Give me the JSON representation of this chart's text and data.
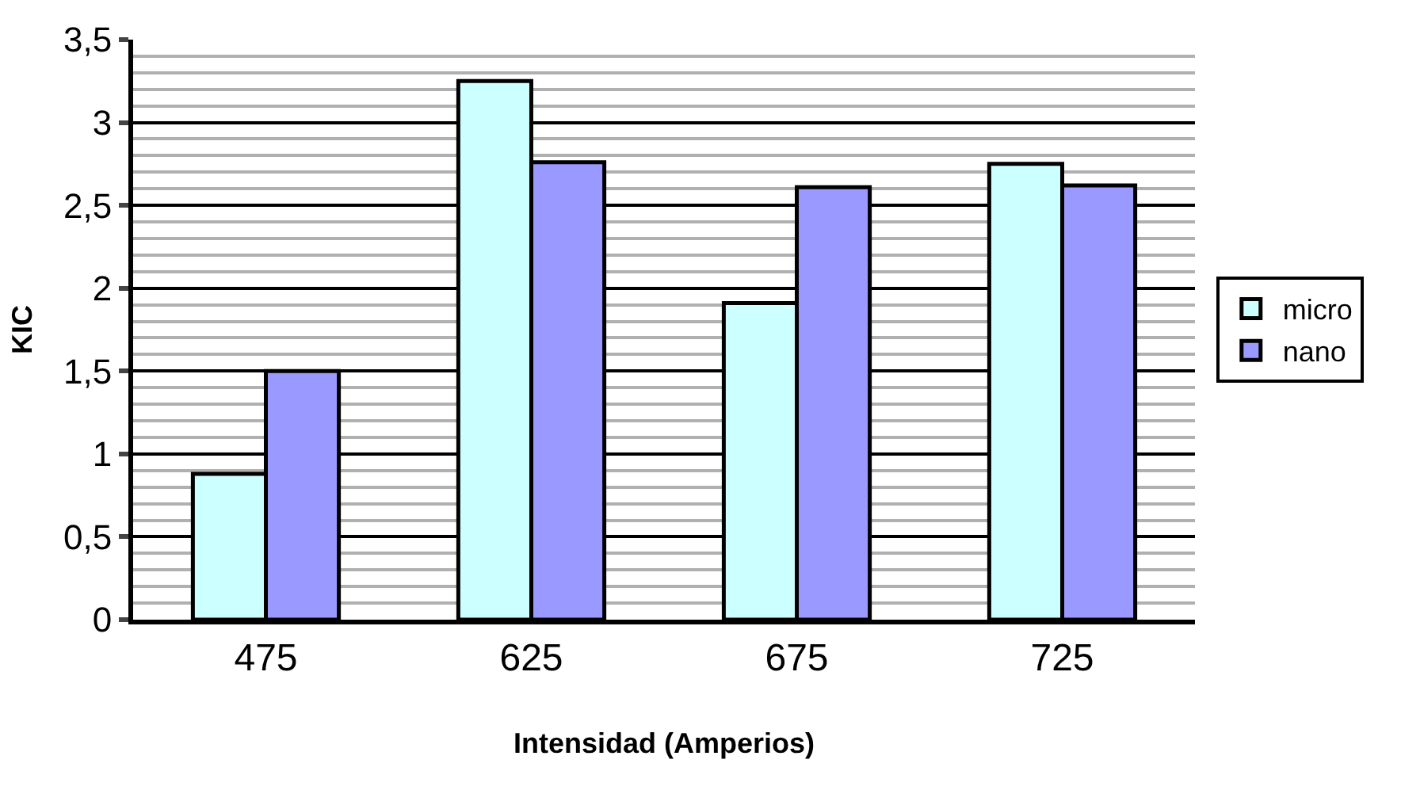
{
  "chart_data": {
    "type": "bar",
    "xlabel": "Intensidad (Amperios)",
    "ylabel": "KIC",
    "categories": [
      "475",
      "625",
      "675",
      "725"
    ],
    "series": [
      {
        "name": "micro",
        "color": "#ccffff",
        "values": [
          0.88,
          3.25,
          1.91,
          2.75
        ]
      },
      {
        "name": "nano",
        "color": "#9999ff",
        "values": [
          1.5,
          2.76,
          2.61,
          2.62
        ]
      }
    ],
    "ylim": [
      0,
      3.5
    ],
    "yticks": [
      0,
      {
        "value": 0.5,
        "label": "0,5"
      },
      1,
      {
        "value": 1.5,
        "label": "1,5"
      },
      2,
      {
        "value": 2.5,
        "label": "2,5"
      },
      3,
      {
        "value": 3.5,
        "label": "3,5"
      }
    ],
    "grid": "y",
    "legend": "right"
  }
}
